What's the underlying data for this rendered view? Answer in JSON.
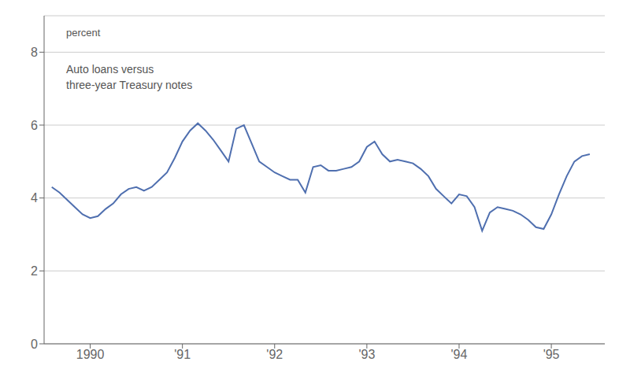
{
  "chart_data": {
    "type": "line",
    "title": "Auto loans versus\nthree-year Treasury notes",
    "ylabel": "percent",
    "color": "#4f6faf",
    "grid": true,
    "xlim": [
      1989.5,
      1995.58
    ],
    "xticks": [
      1990,
      {
        "value": 1991,
        "label": "'91"
      },
      {
        "value": 1992,
        "label": "'92"
      },
      {
        "value": 1993,
        "label": "'93"
      },
      {
        "value": 1994,
        "label": "'94"
      },
      {
        "value": 1995,
        "label": "'95"
      }
    ],
    "ylim": [
      0,
      9
    ],
    "yticks": [
      0,
      2,
      4,
      6,
      8
    ],
    "x": [
      1989.583,
      1989.667,
      1989.75,
      1989.833,
      1989.917,
      1990.0,
      1990.083,
      1990.167,
      1990.25,
      1990.333,
      1990.417,
      1990.5,
      1990.583,
      1990.667,
      1990.75,
      1990.833,
      1990.917,
      1991.0,
      1991.083,
      1991.167,
      1991.25,
      1991.333,
      1991.417,
      1991.5,
      1991.583,
      1991.667,
      1991.75,
      1991.833,
      1991.917,
      1992.0,
      1992.083,
      1992.167,
      1992.25,
      1992.333,
      1992.417,
      1992.5,
      1992.583,
      1992.667,
      1992.75,
      1992.833,
      1992.917,
      1993.0,
      1993.083,
      1993.167,
      1993.25,
      1993.333,
      1993.417,
      1993.5,
      1993.583,
      1993.667,
      1993.75,
      1993.833,
      1993.917,
      1994.0,
      1994.083,
      1994.167,
      1994.25,
      1994.333,
      1994.417,
      1994.5,
      1994.583,
      1994.667,
      1994.75,
      1994.833,
      1994.917,
      1995.0,
      1995.083,
      1995.167,
      1995.25,
      1995.333,
      1995.417
    ],
    "values": [
      4.3,
      4.15,
      3.95,
      3.75,
      3.55,
      3.45,
      3.5,
      3.7,
      3.85,
      4.1,
      4.25,
      4.3,
      4.2,
      4.3,
      4.5,
      4.7,
      5.1,
      5.55,
      5.85,
      6.05,
      5.85,
      5.6,
      5.3,
      5.0,
      5.9,
      6.0,
      5.5,
      5.0,
      4.85,
      4.7,
      4.6,
      4.5,
      4.5,
      4.15,
      4.85,
      4.9,
      4.75,
      4.75,
      4.8,
      4.85,
      5.0,
      5.4,
      5.55,
      5.2,
      5.0,
      5.05,
      5.0,
      4.95,
      4.8,
      4.6,
      4.25,
      4.05,
      3.85,
      4.1,
      4.05,
      3.75,
      3.1,
      3.6,
      3.75,
      3.7,
      3.65,
      3.55,
      3.4,
      3.2,
      3.15,
      3.55,
      4.1,
      4.6,
      5.0,
      5.15,
      5.2
    ]
  }
}
